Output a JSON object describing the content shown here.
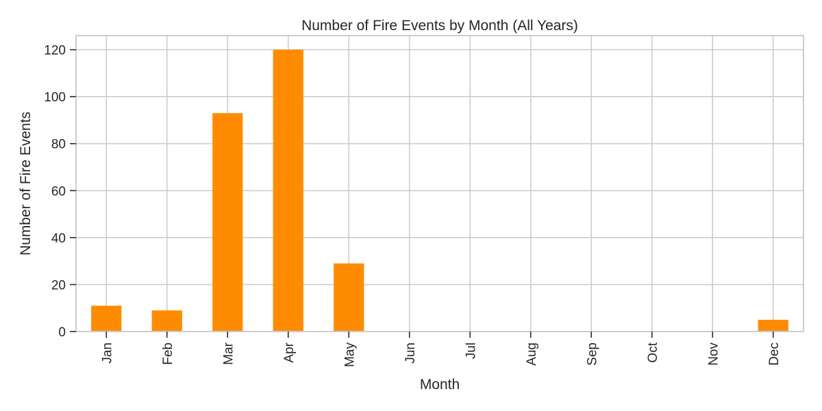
{
  "chart_data": {
    "type": "bar",
    "title": "Number of Fire Events by Month (All Years)",
    "xlabel": "Month",
    "ylabel": "Number of Fire Events",
    "categories": [
      "Jan",
      "Feb",
      "Mar",
      "Apr",
      "May",
      "Jun",
      "Jul",
      "Aug",
      "Sep",
      "Oct",
      "Nov",
      "Dec"
    ],
    "values": [
      11,
      9,
      93,
      120,
      29,
      0,
      0,
      0,
      0,
      0,
      0,
      5
    ],
    "ylim": [
      0,
      126
    ],
    "yticks": [
      0,
      20,
      40,
      60,
      80,
      100,
      120
    ],
    "grid": true,
    "legend": "none",
    "bar_color": "#ff8c00",
    "grid_color": "#cccccc",
    "axis_color": "#cccccc"
  }
}
